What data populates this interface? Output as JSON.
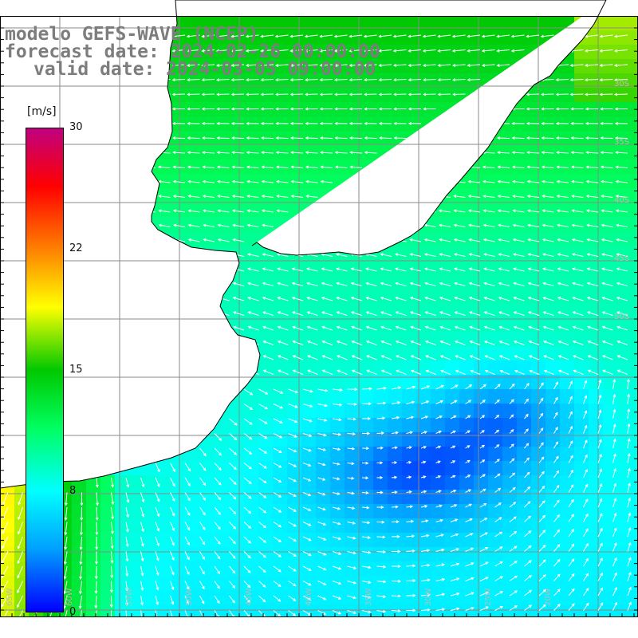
{
  "title_lines": [
    "modelo GEFS-WAVE (NCEP)",
    "forecast date: 2024-02-26 00:00:00",
    "valid date: 2024-03-05 09:00:00"
  ],
  "colorbar": {
    "unit": "[m/s]",
    "ticks": [
      "30",
      "22",
      "15",
      "8",
      "0"
    ],
    "tick_values": [
      30,
      22,
      15,
      8,
      0
    ],
    "min": 0,
    "max": 30,
    "colors": [
      "#0000ff",
      "#00a0ff",
      "#00ffff",
      "#00ff60",
      "#00c800",
      "#ffff00",
      "#ff8000",
      "#ff0000",
      "#c00080"
    ]
  },
  "map": {
    "type": "wind-field",
    "land_color": "#ffffff",
    "grid_color": "#808080",
    "lat_labels": [
      "30S",
      "35S",
      "40S",
      "45S",
      "50S"
    ],
    "lon_labels": [
      "65W",
      "60W",
      "55W",
      "50W",
      "45W",
      "40W",
      "35W",
      "30W",
      "25W",
      "20W"
    ]
  }
}
